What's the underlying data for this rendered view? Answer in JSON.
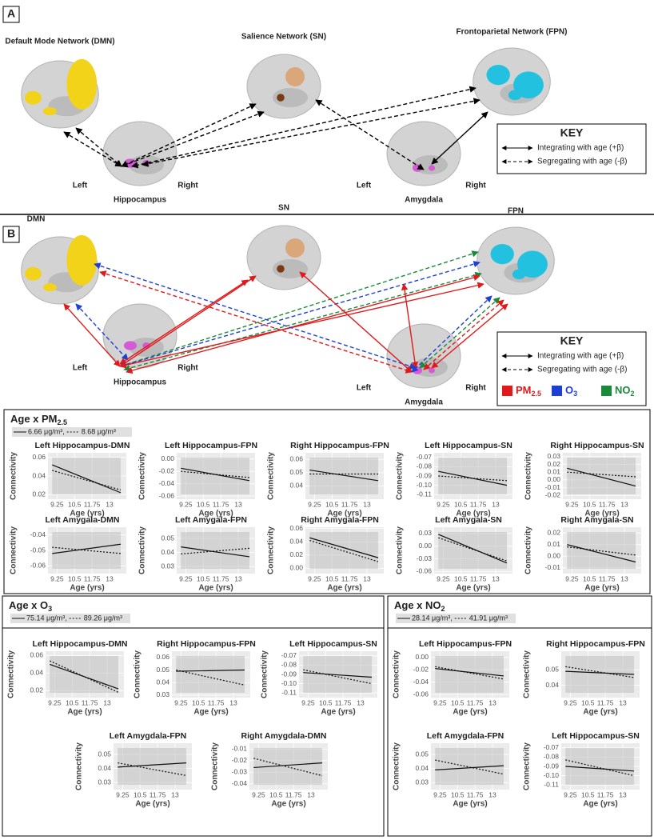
{
  "panel_a": {
    "letter": "A",
    "dmn": "Default Mode Network (DMN)",
    "sn": "Salience Network (SN)",
    "fpn": "Frontoparietal Network (FPN)",
    "hipp_left": "Left",
    "hipp_right": "Right",
    "hippocampus": "Hippocampus",
    "amyg_left": "Left",
    "amyg_right": "Right",
    "amygdala": "Amygdala",
    "key": {
      "title": "KEY",
      "integrating": "Integrating with age (+β)",
      "segregating": "Segregating with age (-β)"
    }
  },
  "panel_b": {
    "letter": "B",
    "dmn": "DMN",
    "sn": "SN",
    "fpn": "FPN",
    "hipp_left": "Left",
    "hipp_right": "Right",
    "hippocampus": "Hippocampus",
    "amyg_left": "Left",
    "amyg_right": "Right",
    "amygdala": "Amygdala",
    "key": {
      "title": "KEY",
      "integrating": "Integrating with age (+β)",
      "segregating": "Segregating with age (-β)",
      "pollutants": [
        {
          "text": "PM",
          "sub": "2.5",
          "color": "#e0191b"
        },
        {
          "text": "O",
          "sub": "3",
          "color": "#1d3fd6"
        },
        {
          "text": "NO",
          "sub": "2",
          "color": "#1a8a3a"
        }
      ]
    }
  },
  "axes": {
    "ylabel": "Connectivity",
    "xlabel": "Age (yrs)",
    "x": [
      8.9,
      13.8
    ],
    "xlim": [
      8.6,
      14.2
    ],
    "xticks": [
      9.25,
      10.5,
      11.75,
      13
    ],
    "legend_separator": ","
  },
  "groups": [
    {
      "title": {
        "text": "Age x PM",
        "sub": "2.5"
      },
      "legend": [
        {
          "name": "6.66 μg/m³",
          "style": "solid"
        },
        {
          "name": "8.68 μg/m³",
          "style": "dotted"
        }
      ],
      "charts": [
        {
          "type": "line",
          "title": "Left Hippocampus-DMN",
          "ylim": [
            0.015,
            0.065
          ],
          "yticks": [
            0.02,
            0.04,
            0.06
          ],
          "series": [
            {
              "values": [
                0.052,
                0.022
              ]
            },
            {
              "values": [
                0.046,
                0.025
              ]
            }
          ]
        },
        {
          "type": "line",
          "title": "Left Hippocampus-FPN",
          "ylim": [
            -0.065,
            0.01
          ],
          "yticks": [
            {
              "value": 0,
              "label": "0.00"
            },
            -0.02,
            -0.04,
            -0.06
          ],
          "series": [
            {
              "values": [
                -0.015,
                -0.035
              ]
            },
            {
              "values": [
                -0.02,
                -0.03
              ]
            }
          ]
        },
        {
          "type": "line",
          "title": "Right Hippocampus-FPN",
          "ylim": [
            0.03,
            0.065
          ],
          "yticks": [
            0.06,
            0.05,
            0.04
          ],
          "series": [
            {
              "values": [
                0.052,
                0.044
              ]
            },
            {
              "values": [
                0.049,
                0.049
              ]
            }
          ]
        },
        {
          "type": "line",
          "title": "Left Hippocampus-SN",
          "ylim": [
            -0.115,
            -0.065
          ],
          "yticks": [
            -0.07,
            -0.08,
            -0.09,
            {
              "value": -0.1,
              "label": "-0.10"
            },
            -0.11
          ],
          "series": [
            {
              "values": [
                -0.085,
                -0.1
              ]
            },
            {
              "values": [
                -0.09,
                -0.095
              ]
            }
          ]
        },
        {
          "type": "line",
          "title": "Right Hippocampus-SN",
          "ylim": [
            -0.025,
            0.035
          ],
          "yticks": [
            0.03,
            0.02,
            0.01,
            {
              "value": 0,
              "label": "0.00"
            },
            -0.01,
            -0.02
          ],
          "series": [
            {
              "values": [
                0.015,
                -0.008
              ]
            },
            {
              "values": [
                0.01,
                0.004
              ]
            }
          ]
        },
        {
          "type": "line",
          "title": "Left Amygala-DMN",
          "ylim": [
            -0.065,
            -0.035
          ],
          "yticks": [
            -0.04,
            -0.05,
            -0.06
          ],
          "series": [
            {
              "values": [
                -0.052,
                -0.046
              ]
            },
            {
              "values": [
                -0.048,
                -0.052
              ]
            }
          ]
        },
        {
          "type": "line",
          "title": "Left Amygala-FPN",
          "ylim": [
            0.025,
            0.058
          ],
          "yticks": [
            0.05,
            0.04,
            0.03
          ],
          "series": [
            {
              "values": [
                0.044,
                0.037
              ]
            },
            {
              "values": [
                0.039,
                0.043
              ]
            }
          ]
        },
        {
          "type": "line",
          "title": "Right Amygala-FPN",
          "ylim": [
            -0.008,
            0.062
          ],
          "yticks": [
            0.06,
            0.04,
            0.02,
            {
              "value": 0,
              "label": "0.00"
            }
          ],
          "series": [
            {
              "values": [
                0.046,
                0.016
              ]
            },
            {
              "values": [
                0.042,
                0.01
              ]
            }
          ]
        },
        {
          "type": "line",
          "title": "Left Amygala-SN",
          "ylim": [
            -0.065,
            0.045
          ],
          "yticks": [
            0.03,
            {
              "value": 0,
              "label": "0.00"
            },
            -0.03,
            -0.06
          ],
          "series": [
            {
              "values": [
                0.028,
                -0.04
              ]
            },
            {
              "values": [
                0.02,
                -0.035
              ]
            }
          ]
        },
        {
          "type": "line",
          "title": "Right Amygala-SN",
          "ylim": [
            -0.015,
            0.025
          ],
          "yticks": [
            0.02,
            0.01,
            {
              "value": 0,
              "label": "0.00"
            },
            -0.01
          ],
          "series": [
            {
              "values": [
                0.01,
                -0.005
              ]
            },
            {
              "values": [
                0.008,
                0.001
              ]
            }
          ]
        }
      ]
    },
    {
      "title": {
        "text": "Age x O",
        "sub": "3"
      },
      "legend": [
        {
          "name": "75.14 μg/m³",
          "style": "solid"
        },
        {
          "name": "89.26 μg/m³",
          "style": "dotted"
        }
      ],
      "charts": [
        {
          "type": "line",
          "title": "Left Hippocampus-DMN",
          "ylim": [
            0.012,
            0.065
          ],
          "yticks": [
            0.02,
            0.04,
            0.06
          ],
          "series": [
            {
              "values": [
                0.05,
                0.022
              ]
            },
            {
              "values": [
                0.054,
                0.018
              ]
            }
          ]
        },
        {
          "type": "line",
          "title": "Right Hippocampus-FPN",
          "ylim": [
            0.028,
            0.065
          ],
          "yticks": [
            0.06,
            0.05,
            0.04,
            0.03
          ],
          "series": [
            {
              "values": [
                0.049,
                0.05
              ]
            },
            {
              "values": [
                0.05,
                0.038
              ]
            }
          ]
        },
        {
          "type": "line",
          "title": "Left Hippocampus-SN",
          "ylim": [
            -0.115,
            -0.065
          ],
          "yticks": [
            -0.07,
            -0.08,
            -0.09,
            {
              "value": -0.1,
              "label": "-0.10"
            },
            -0.11
          ],
          "series": [
            {
              "values": [
                -0.088,
                -0.093
              ]
            },
            {
              "values": [
                -0.085,
                -0.1
              ]
            }
          ]
        },
        {
          "type": "line",
          "title": "Left Amygdala-FPN",
          "ylim": [
            0.025,
            0.058
          ],
          "yticks": [
            0.05,
            0.04,
            0.03
          ],
          "series": [
            {
              "values": [
                0.041,
                0.044
              ]
            },
            {
              "values": [
                0.044,
                0.035
              ]
            }
          ]
        },
        {
          "type": "line",
          "title": "Right Amygdala-DMN",
          "ylim": [
            -0.045,
            -0.005
          ],
          "yticks": [
            -0.01,
            -0.02,
            -0.03,
            -0.04
          ],
          "series": [
            {
              "values": [
                -0.026,
                -0.022
              ]
            },
            {
              "values": [
                -0.018,
                -0.033
              ]
            }
          ]
        }
      ]
    },
    {
      "title": {
        "text": "Age x NO",
        "sub": "2"
      },
      "legend": [
        {
          "name": "28.14 μg/m³",
          "style": "solid"
        },
        {
          "name": "41.91 μg/m³",
          "style": "dotted"
        }
      ],
      "charts": [
        {
          "type": "line",
          "title": "Left Hippocampus-FPN",
          "ylim": [
            -0.065,
            0.01
          ],
          "yticks": [
            {
              "value": 0,
              "label": "0.00"
            },
            -0.02,
            -0.04,
            -0.06
          ],
          "series": [
            {
              "values": [
                -0.018,
                -0.03
              ]
            },
            {
              "values": [
                -0.015,
                -0.035
              ]
            }
          ]
        },
        {
          "type": "line",
          "title": "Right Hippocampus-FPN",
          "ylim": [
            0.032,
            0.062
          ],
          "yticks": [
            0.05,
            0.04
          ],
          "series": [
            {
              "values": [
                0.049,
                0.047
              ]
            },
            {
              "values": [
                0.052,
                0.045
              ]
            }
          ]
        },
        {
          "type": "line",
          "title": "Left Amygdala-FPN",
          "ylim": [
            0.025,
            0.058
          ],
          "yticks": [
            0.05,
            0.04,
            0.03
          ],
          "series": [
            {
              "values": [
                0.039,
                0.042
              ]
            },
            {
              "values": [
                0.046,
                0.036
              ]
            }
          ]
        },
        {
          "type": "line",
          "title": "Left Hippocampus-SN",
          "ylim": [
            -0.115,
            -0.065
          ],
          "yticks": [
            -0.07,
            -0.08,
            -0.09,
            {
              "value": -0.1,
              "label": "-0.10"
            },
            -0.11
          ],
          "series": [
            {
              "values": [
                -0.09,
                -0.095
              ]
            },
            {
              "values": [
                -0.083,
                -0.1
              ]
            }
          ]
        }
      ]
    }
  ]
}
